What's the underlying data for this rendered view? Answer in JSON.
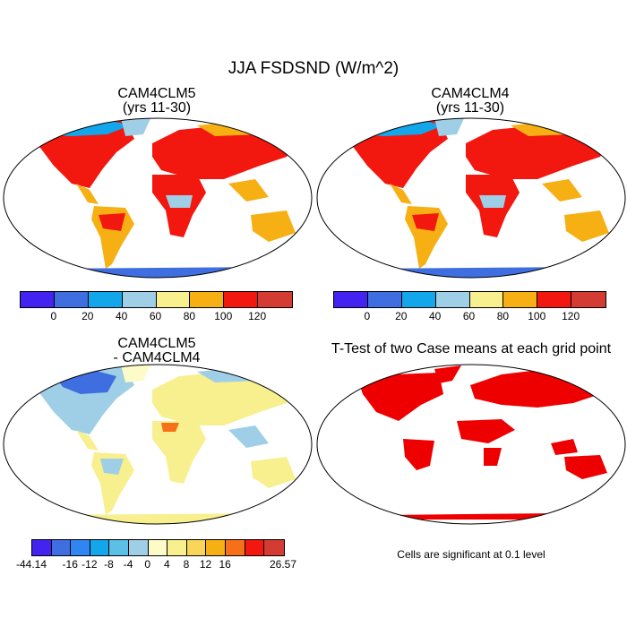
{
  "title": "JJA FSDSND (W/m^2)",
  "panels": {
    "top_left": {
      "title_line1": "CAM4CLM5",
      "title_line2": "(yrs 11-30)"
    },
    "top_right": {
      "title_line1": "CAM4CLM4",
      "title_line2": "(yrs 11-30)"
    },
    "bottom_left": {
      "title_line1": "CAM4CLM5",
      "title_line2": "- CAM4CLM4"
    },
    "bottom_right": {
      "title": "T-Test of two Case means at each grid point",
      "note": "Cells are significant at 0.1 level"
    }
  },
  "colorbar_abs": {
    "colors": [
      "#4323ef",
      "#3f6ee0",
      "#14a6ea",
      "#9fcfe7",
      "#f8ef8e",
      "#f6b014",
      "#f2170f",
      "#d33b33"
    ],
    "labels": [
      "0",
      "20",
      "40",
      "60",
      "80",
      "100",
      "120"
    ]
  },
  "colorbar_diff": {
    "colors": [
      "#4323ef",
      "#3f6ee0",
      "#2f86f2",
      "#14a6ea",
      "#5cbfe6",
      "#9fcfe7",
      "#fdfbc8",
      "#f8ef8e",
      "#f7d65a",
      "#f6b014",
      "#f57018",
      "#f2170f",
      "#d33b33"
    ],
    "labels": [
      "-44.14",
      "-16",
      "-12",
      "-8",
      "-4",
      "0",
      "4",
      "8",
      "12",
      "16",
      "26.57"
    ]
  },
  "significance_color": "#ee0000"
}
